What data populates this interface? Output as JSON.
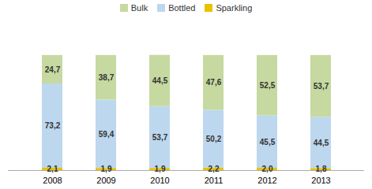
{
  "chart_data": {
    "type": "bar",
    "stacked": true,
    "categories": [
      "2008",
      "2009",
      "2010",
      "2011",
      "2012",
      "2013"
    ],
    "series": [
      {
        "name": "Sparkling",
        "color": "#E8C200",
        "values": [
          2.1,
          1.9,
          1.9,
          2.2,
          2.0,
          1.8
        ],
        "value_labels": [
          "2,1",
          "1,9",
          "1,9",
          "2,2",
          "2,0",
          "1,8"
        ]
      },
      {
        "name": "Bottled",
        "color": "#BDD7EE",
        "values": [
          73.2,
          59.4,
          53.7,
          50.2,
          45.5,
          44.5
        ],
        "value_labels": [
          "73,2",
          "59,4",
          "53,7",
          "50,2",
          "45,5",
          "44,5"
        ]
      },
      {
        "name": "Bulk",
        "color": "#C6D9A0",
        "values": [
          24.7,
          38.7,
          44.5,
          47.6,
          52.5,
          53.7
        ],
        "value_labels": [
          "24,7",
          "38,7",
          "44,5",
          "47,6",
          "52,5",
          "53,7"
        ]
      }
    ],
    "ylim": [
      0,
      130
    ],
    "data_labels": true,
    "tick_labels": "x",
    "grid": false,
    "legend": "top"
  }
}
